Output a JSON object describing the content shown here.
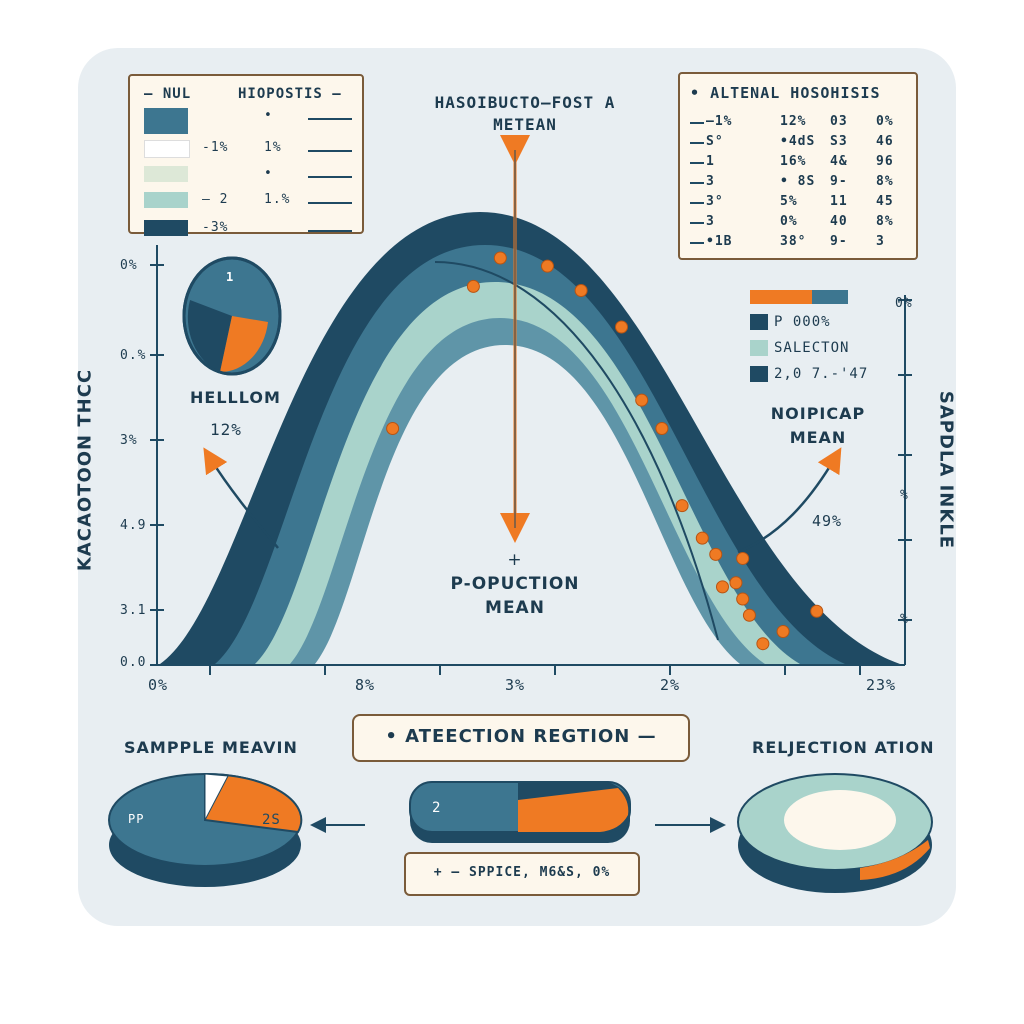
{
  "colors": {
    "navy": "#1f4a63",
    "teal": "#3d7690",
    "mint": "#a9d3cb",
    "orange": "#ef7a23",
    "paper": "#fdf7ec"
  },
  "null_legend": {
    "title_left": "NUL",
    "title_right": "HIOPOSTIS",
    "rows": [
      {
        "swatch": "#3d7690",
        "a": "",
        "b": "•"
      },
      {
        "swatch": "#ffffff",
        "a": "-1%",
        "b": "1%"
      },
      {
        "swatch": "#dde8d7",
        "a": "",
        "b": "•"
      },
      {
        "swatch": "#a9d3cb",
        "a": "– 2",
        "b": "1.%"
      },
      {
        "swatch": "#1f4a63",
        "a": "-3%",
        "b": ""
      }
    ]
  },
  "top_label": {
    "line1": "HASOIBUCTO–FOST A",
    "line2": "METEAN"
  },
  "alt_table": {
    "title": "ALTENAL HOSOHISIS",
    "rows": [
      [
        "–1%",
        "12%",
        "03",
        "0%"
      ],
      [
        "S°",
        "•4dS",
        "S3",
        "46"
      ],
      [
        "1",
        "16%",
        "4&",
        "96"
      ],
      [
        "3",
        "• 8S",
        "9-",
        "8%"
      ],
      [
        "3°",
        "5%",
        "11",
        "45"
      ],
      [
        "3",
        "0%",
        "40",
        "8%"
      ],
      [
        "•1B",
        "38°",
        "9-",
        "3"
      ]
    ]
  },
  "y_axis_left": {
    "label": "KACAOTOON THCC",
    "ticks": [
      "0%",
      "0.%",
      "3%",
      "4.9",
      "3.1",
      "0.0"
    ]
  },
  "y_axis_right": {
    "label": "SAPDLA INKLE",
    "ticks": [
      "0%",
      "%",
      "%"
    ]
  },
  "x_axis": {
    "ticks": [
      "0%",
      "8%",
      "3%",
      "2%",
      "23%"
    ]
  },
  "left_pie": {
    "number": "1",
    "label": "HELLLOM",
    "value": "12%"
  },
  "right_legend": {
    "items": [
      {
        "color": "#1f4a63",
        "text": "P 000%"
      },
      {
        "color": "#a9d3cb",
        "text": "SALECTON"
      },
      {
        "color": "#1f4a63",
        "text": "2,0 7.-'47"
      }
    ]
  },
  "right_label": {
    "line1": "NOIPICAP",
    "line2": "MEAN",
    "value": "49%"
  },
  "center_label": {
    "plus": "+",
    "line1": "P-OPUCTION",
    "line2": "MEAN"
  },
  "region_box": {
    "text": "• ATEECTION REGTION —"
  },
  "sample_mean": {
    "label": "SAMPPLE MEAVIN",
    "left_text": "PP",
    "right_text": "2S"
  },
  "middle_pill": {
    "number": "2"
  },
  "bottom_box": {
    "text": "+ – SPPICE, M6&S, 0%"
  },
  "rejection": {
    "label": "RELJECTION ATION"
  },
  "chart_data": {
    "type": "scatter",
    "x_tick_labels": [
      "0%",
      "8%",
      "3%",
      "2%",
      "23%"
    ],
    "points": [
      [
        0.35,
        0.58
      ],
      [
        0.47,
        0.93
      ],
      [
        0.51,
        1.0
      ],
      [
        0.58,
        0.98
      ],
      [
        0.63,
        0.92
      ],
      [
        0.69,
        0.83
      ],
      [
        0.72,
        0.65
      ],
      [
        0.75,
        0.58
      ],
      [
        0.78,
        0.39
      ],
      [
        0.81,
        0.31
      ],
      [
        0.83,
        0.27
      ],
      [
        0.86,
        0.2
      ],
      [
        0.84,
        0.19
      ],
      [
        0.87,
        0.16
      ],
      [
        0.88,
        0.12
      ],
      [
        0.9,
        0.05
      ],
      [
        0.93,
        0.08
      ],
      [
        0.98,
        0.13
      ],
      [
        0.87,
        0.26
      ]
    ]
  }
}
